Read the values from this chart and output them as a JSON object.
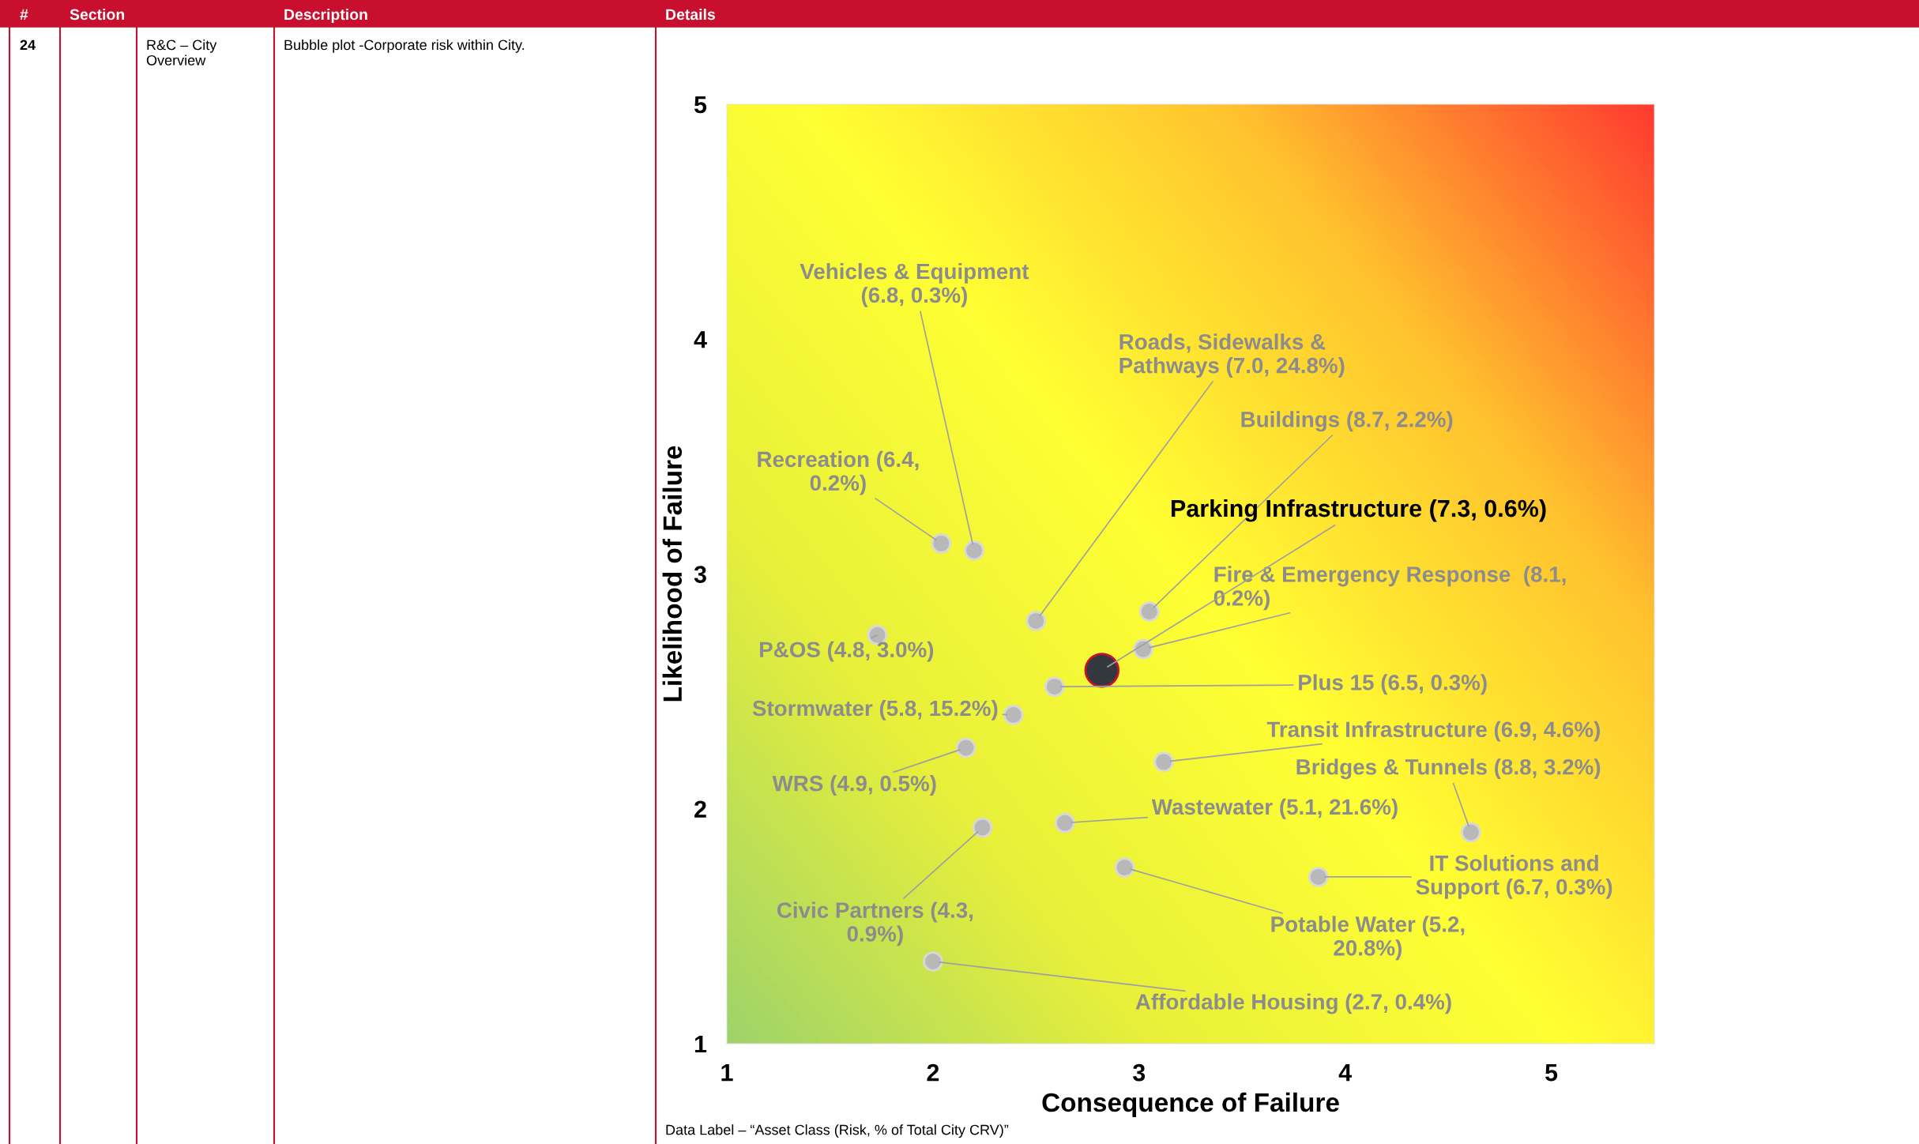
{
  "chart_data": {
    "type": "bubble",
    "xlabel": "Consequence of Failure",
    "ylabel": "Likelihood of Failure",
    "x": [
      2.04,
      2.2,
      2.5,
      3.05,
      3.02,
      2.82,
      1.73,
      2.59,
      2.39,
      2.16,
      3.12,
      2.64,
      2.24,
      2.93,
      3.87,
      4.61,
      2.0
    ],
    "values": [
      3.13,
      3.1,
      2.8,
      2.84,
      2.68,
      2.59,
      2.74,
      2.52,
      2.4,
      2.26,
      2.2,
      1.94,
      1.92,
      1.75,
      1.71,
      1.9,
      1.35
    ],
    "sizes": [
      0.3,
      0.3,
      0.3,
      0.3,
      0.3,
      1,
      0.3,
      0.3,
      0.3,
      0.3,
      0.3,
      0.3,
      0.3,
      0.3,
      0.3,
      0.3,
      0.3
    ],
    "colors": [
      "#b8b8b8",
      "#b8b8b8",
      "#b8b8b8",
      "#b8b8b8",
      "#b8b8b8",
      "#33383f",
      "#b8b8b8",
      "#b8b8b8",
      "#b8b8b8",
      "#b8b8b8",
      "#b8b8b8",
      "#b8b8b8",
      "#b8b8b8",
      "#b8b8b8",
      "#b8b8b8",
      "#b8b8b8",
      "#b8b8b8"
    ],
    "xlim": [
      1,
      5.5
    ],
    "ylim": [
      1,
      5
    ],
    "xticks": [
      1,
      2,
      3,
      4,
      5
    ],
    "yticks": [
      1,
      2,
      3,
      4,
      5
    ],
    "grid": false,
    "annotations": [
      "#",
      "Section",
      "Description",
      "Details",
      "24",
      "R&C – City\nOverview",
      "Bubble plot -Corporate risk within City.",
      "Data Label – “Asset Class (Risk, % of Total City CRV)”",
      {
        "text": "Recreation (6.4,\n0.2%)",
        "x": 2.04,
        "y": 3.13
      },
      {
        "text": "Vehicles & Equipment\n(6.8, 0.3%)",
        "x": 2.2,
        "y": 3.1
      },
      {
        "text": "Roads, Sidewalks &\nPathways (7.0, 24.8%)",
        "x": 2.5,
        "y": 2.8
      },
      {
        "text": "Buildings (8.7, 2.2%)",
        "x": 3.05,
        "y": 2.84
      },
      {
        "text": "Fire & Emergency Response  (8.1,\n0.2%)",
        "x": 3.02,
        "y": 2.68
      },
      {
        "text": "Parking Infrastructure (7.3, 0.6%)",
        "x": 2.82,
        "y": 2.59
      },
      {
        "text": "P&OS (4.8, 3.0%)",
        "x": 1.73,
        "y": 2.74
      },
      {
        "text": "Plus 15 (6.5, 0.3%)",
        "x": 2.59,
        "y": 2.52
      },
      {
        "text": "Stormwater (5.8, 15.2%)",
        "x": 2.39,
        "y": 2.4
      },
      {
        "text": "WRS (4.9, 0.5%)",
        "x": 2.16,
        "y": 2.26
      },
      {
        "text": "Transit Infrastructure (6.9, 4.6%)",
        "x": 3.12,
        "y": 2.2
      },
      {
        "text": "Wastewater (5.1, 21.6%)",
        "x": 2.64,
        "y": 1.94
      },
      {
        "text": "Civic Partners (4.3,\n0.9%)",
        "x": 2.24,
        "y": 1.92
      },
      {
        "text": "Potable Water (5.2,\n20.8%)",
        "x": 2.93,
        "y": 1.75
      },
      {
        "text": "IT Solutions and\nSupport (6.7, 0.3%)",
        "x": 3.87,
        "y": 1.71
      },
      {
        "text": "Bridges & Tunnels (8.8, 3.2%)",
        "x": 4.61,
        "y": 1.9
      },
      {
        "text": "Affordable Housing (2.7, 0.4%)",
        "x": 2.0,
        "y": 1.35
      }
    ]
  }
}
